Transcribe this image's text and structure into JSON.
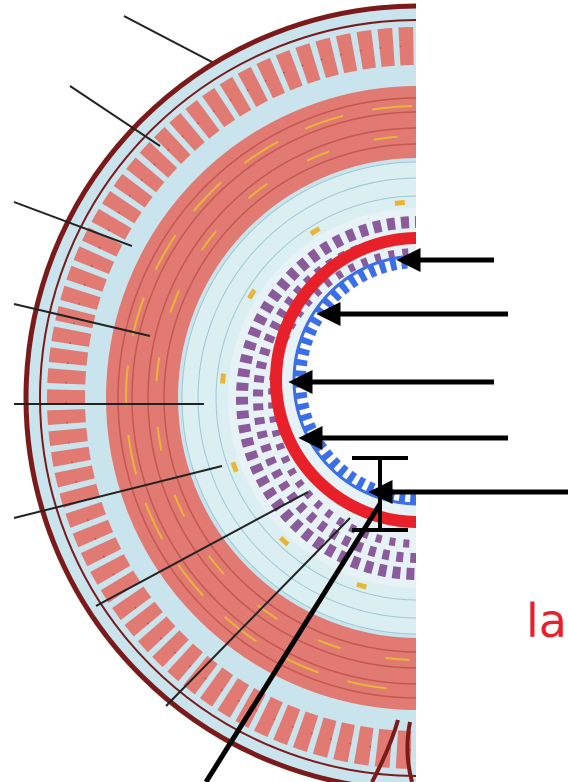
{
  "diagram": {
    "partial_label": "la",
    "colors": {
      "background": "#ffffff",
      "outer_border": "#7a1a1a",
      "connective_tissue": "#c9e4ec",
      "muscle": "#e17a72",
      "muscle_dark": "#c4574f",
      "fat_yellow": "#e8b636",
      "submucosa_light": "#dbeef2",
      "glands": "#8a5a9a",
      "mucosa_ring_red": "#e8202a",
      "epithelium_blue": "#3a6fe8",
      "pointer_black": "#000000",
      "label_red": "#e8202a"
    }
  }
}
